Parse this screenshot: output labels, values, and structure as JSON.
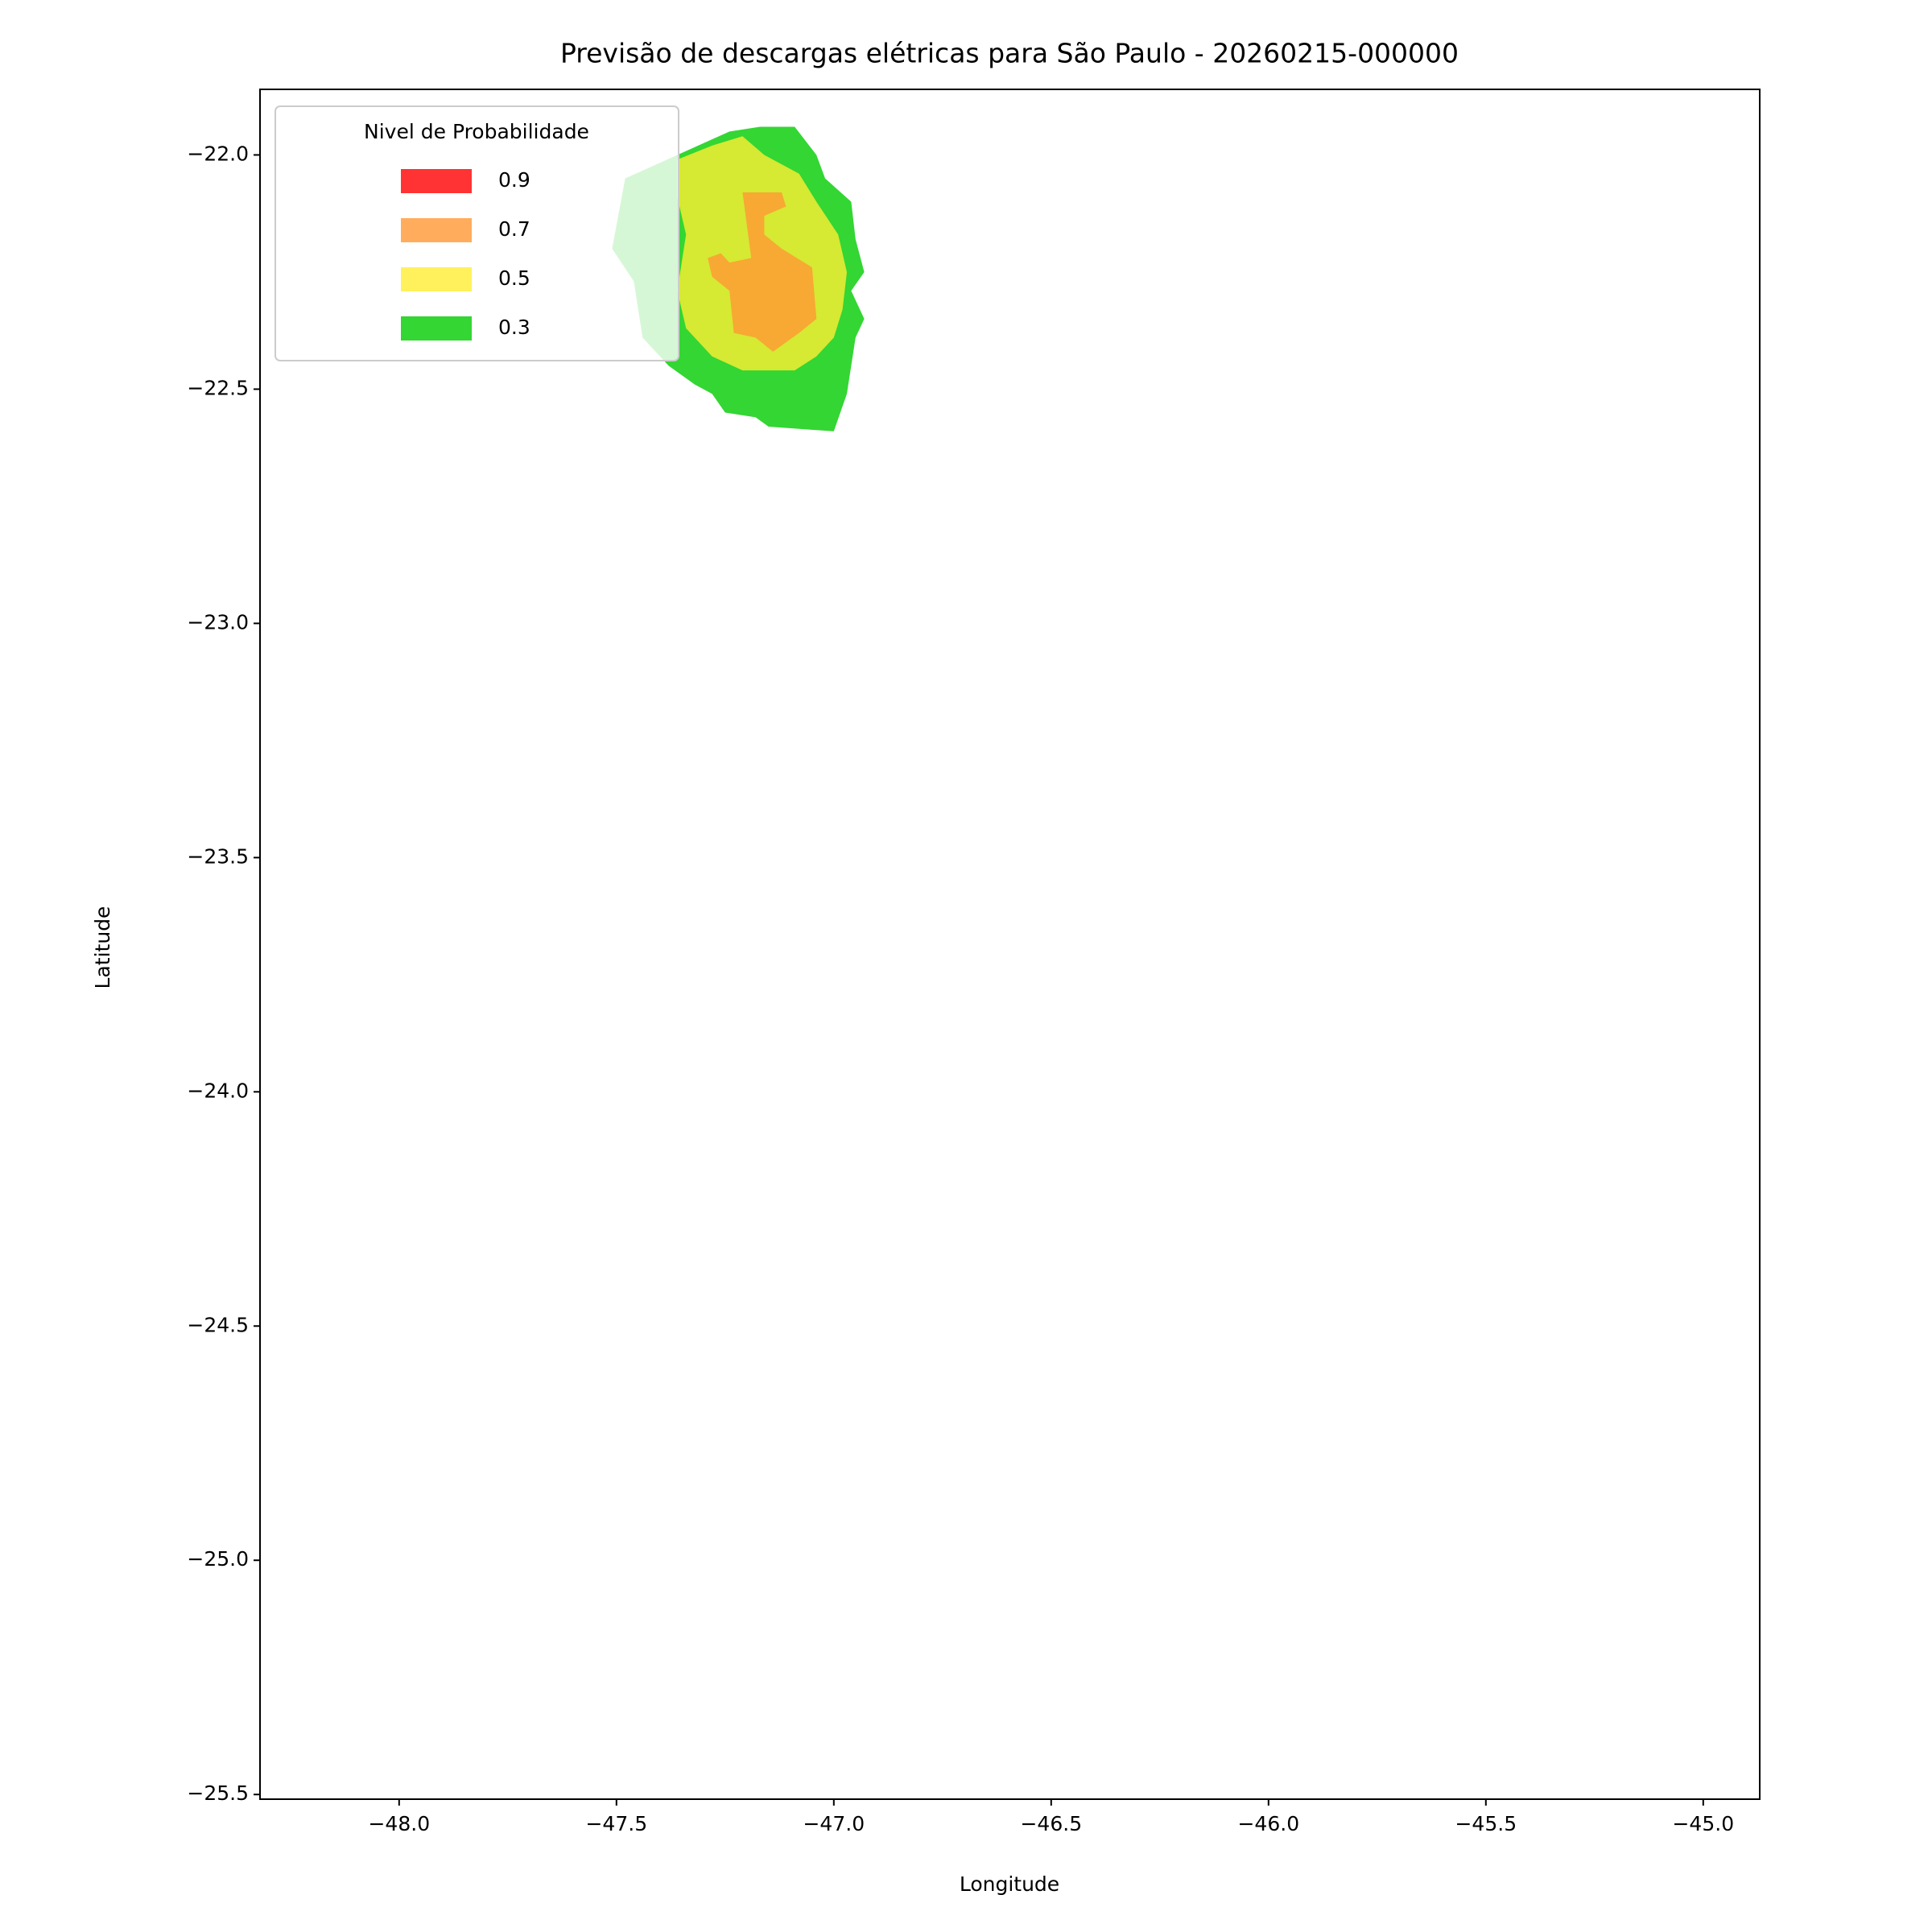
{
  "chart_data": {
    "type": "contour",
    "title": "Previsão de descargas elétricas para São Paulo - 20260215-000000",
    "x_label": "Longitude",
    "y_label": "Latitude",
    "xlim": [
      -48.32,
      -44.87
    ],
    "ylim": [
      -25.51,
      -21.86
    ],
    "xticks": [
      {
        "value": -48.0,
        "label": "−48.0"
      },
      {
        "value": -47.5,
        "label": "−47.5"
      },
      {
        "value": -47.0,
        "label": "−47.0"
      },
      {
        "value": -46.5,
        "label": "−46.5"
      },
      {
        "value": -46.0,
        "label": "−46.0"
      },
      {
        "value": -45.5,
        "label": "−45.5"
      },
      {
        "value": -45.0,
        "label": "−45.0"
      }
    ],
    "yticks": [
      {
        "value": -22.0,
        "label": "−22.0"
      },
      {
        "value": -22.5,
        "label": "−22.5"
      },
      {
        "value": -23.0,
        "label": "−23.0"
      },
      {
        "value": -23.5,
        "label": "−23.5"
      },
      {
        "value": -24.0,
        "label": "−24.0"
      },
      {
        "value": -24.5,
        "label": "−24.5"
      },
      {
        "value": -25.0,
        "label": "−25.0"
      },
      {
        "value": -25.5,
        "label": "−25.5"
      }
    ],
    "legend_title": "Nivel de Probabilidade",
    "legend": "upper left",
    "alpha": 0.8,
    "series": [
      {
        "name": "0.9",
        "color": "#ff0000"
      },
      {
        "name": "0.7",
        "color": "#ff9933",
        "polygons": [
          {
            "lon": [
              -47.21,
              -47.12,
              -47.11,
              -47.16,
              -47.16,
              -47.12,
              -47.05,
              -47.04,
              -47.08,
              -47.14,
              -47.18,
              -47.23,
              -47.24,
              -47.28,
              -47.29,
              -47.26,
              -47.24,
              -47.19
            ],
            "lat": [
              -22.08,
              -22.08,
              -22.11,
              -22.13,
              -22.17,
              -22.2,
              -22.24,
              -22.35,
              -22.38,
              -22.42,
              -22.39,
              -22.38,
              -22.29,
              -22.26,
              -22.22,
              -22.21,
              -22.23,
              -22.22
            ]
          }
        ]
      },
      {
        "name": "0.5",
        "color": "#ffee33",
        "polygons": [
          {
            "lon": [
              -47.36,
              -47.28,
              -47.21,
              -47.16,
              -47.08,
              -47.04,
              -46.99,
              -46.97,
              -46.98,
              -47.0,
              -47.04,
              -47.09,
              -47.21,
              -47.28,
              -47.34,
              -47.36,
              -47.34,
              -47.36
            ],
            "lat": [
              -22.01,
              -21.98,
              -21.96,
              -22.0,
              -22.04,
              -22.1,
              -22.17,
              -22.25,
              -22.33,
              -22.39,
              -22.43,
              -22.46,
              -22.46,
              -22.43,
              -22.37,
              -22.29,
              -22.17,
              -22.09
            ]
          }
        ]
      },
      {
        "name": "0.3",
        "color": "#00cc00",
        "polygons": [
          {
            "lon": [
              -47.51,
              -47.48,
              -47.36,
              -47.24,
              -47.17,
              -47.09,
              -47.04,
              -47.02,
              -46.96,
              -46.95,
              -46.93,
              -46.96,
              -46.93,
              -46.95,
              -46.96,
              -46.97,
              -47.0,
              -47.15,
              -47.18,
              -47.25,
              -47.28,
              -47.32,
              -47.38,
              -47.44,
              -47.46
            ],
            "lat": [
              -22.2,
              -22.05,
              -22.0,
              -21.95,
              -21.94,
              -21.94,
              -22.0,
              -22.05,
              -22.1,
              -22.18,
              -22.25,
              -22.29,
              -22.35,
              -22.39,
              -22.45,
              -22.51,
              -22.59,
              -22.58,
              -22.56,
              -22.55,
              -22.51,
              -22.49,
              -22.45,
              -22.39,
              -22.27
            ]
          }
        ]
      }
    ]
  }
}
